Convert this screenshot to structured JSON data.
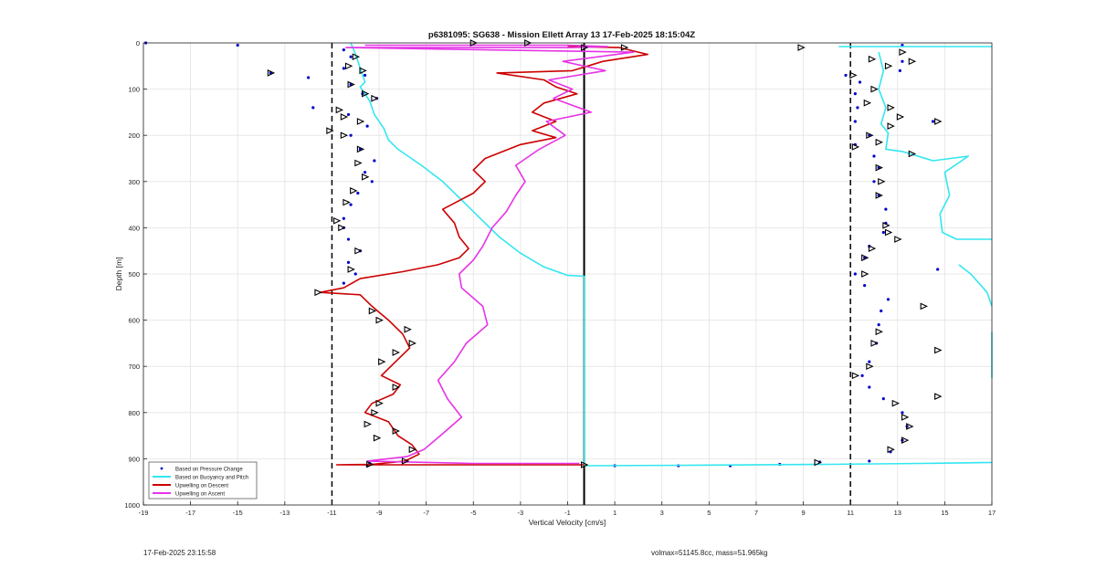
{
  "chart_data": {
    "type": "line",
    "title": "p6381095: SG638 - Mission Ellett Array 13 17-Feb-2025 18:15:04Z",
    "xlabel": "Vertical Velocity [cm/s]",
    "ylabel": "Depth [m]",
    "xlim": [
      -19,
      17
    ],
    "ylim": [
      0,
      1000
    ],
    "y_reversed": true,
    "x_ticks": [
      -19,
      -17,
      -15,
      -13,
      -11,
      -9,
      -7,
      -5,
      -3,
      -1,
      1,
      3,
      5,
      7,
      9,
      11,
      13,
      15,
      17
    ],
    "y_ticks": [
      0,
      100,
      200,
      300,
      400,
      500,
      600,
      700,
      800,
      900,
      1000
    ],
    "grid": true,
    "legend_position": "bottom-left",
    "reference_lines": [
      {
        "type": "vertical",
        "x": -11,
        "style": "dashed",
        "color": "#000000"
      },
      {
        "type": "vertical",
        "x": 11,
        "style": "dashed",
        "color": "#000000"
      },
      {
        "type": "vertical",
        "x": -0.3,
        "style": "solid",
        "color": "#000000"
      }
    ],
    "series": [
      {
        "name": "Based on Pressure Change",
        "kind": "scatter",
        "color": "#0000cc",
        "points": [
          [
            -18.9,
            0
          ],
          [
            -15,
            5
          ],
          [
            -10.5,
            15
          ],
          [
            -10.2,
            30
          ],
          [
            -10.5,
            55
          ],
          [
            -9.6,
            70
          ],
          [
            -13.6,
            65
          ],
          [
            -12,
            75
          ],
          [
            -10.2,
            90
          ],
          [
            -9.7,
            110
          ],
          [
            -9.1,
            120
          ],
          [
            -11.8,
            140
          ],
          [
            -10.3,
            155
          ],
          [
            -9.5,
            180
          ],
          [
            -10.2,
            200
          ],
          [
            -9.8,
            230
          ],
          [
            -9.2,
            255
          ],
          [
            -9.6,
            280
          ],
          [
            -9.3,
            300
          ],
          [
            -9.9,
            325
          ],
          [
            -10.2,
            350
          ],
          [
            -10.5,
            380
          ],
          [
            -10.5,
            400
          ],
          [
            -10.3,
            425
          ],
          [
            -9.8,
            450
          ],
          [
            -10.3,
            475
          ],
          [
            -10,
            500
          ],
          [
            -10.5,
            520
          ],
          [
            -9.4,
            910
          ],
          [
            -9.5,
            915
          ],
          [
            1,
            915
          ],
          [
            3.7,
            915
          ],
          [
            5.9,
            915
          ],
          [
            8,
            912
          ],
          [
            9.7,
            907
          ],
          [
            10.8,
            70
          ],
          [
            11.4,
            85
          ],
          [
            11.2,
            110
          ],
          [
            11.3,
            140
          ],
          [
            11.2,
            170
          ],
          [
            11.8,
            200
          ],
          [
            11.2,
            220
          ],
          [
            12,
            245
          ],
          [
            12.2,
            270
          ],
          [
            12,
            300
          ],
          [
            12.2,
            330
          ],
          [
            12.5,
            360
          ],
          [
            12.5,
            390
          ],
          [
            12.4,
            410
          ],
          [
            11.8,
            440
          ],
          [
            11.6,
            465
          ],
          [
            11.2,
            500
          ],
          [
            11.6,
            525
          ],
          [
            12.6,
            555
          ],
          [
            12.3,
            580
          ],
          [
            12.2,
            610
          ],
          [
            12.1,
            650
          ],
          [
            11.8,
            690
          ],
          [
            11.5,
            720
          ],
          [
            11.8,
            745
          ],
          [
            12.4,
            770
          ],
          [
            13.2,
            800
          ],
          [
            13.4,
            830
          ],
          [
            13.2,
            860
          ],
          [
            12.7,
            885
          ],
          [
            11.8,
            905
          ],
          [
            13.2,
            5
          ],
          [
            13.2,
            40
          ],
          [
            13.1,
            60
          ],
          [
            14.5,
            170
          ],
          [
            14.7,
            490
          ]
        ]
      },
      {
        "name": "Based on Buoyancy and Pitch",
        "kind": "line",
        "color": "#33e6f0",
        "segments": [
          [
            [
              -10.2,
              0
            ],
            [
              -10,
              25
            ],
            [
              -9.8,
              55
            ],
            [
              -9.6,
              85
            ],
            [
              -9.8,
              95
            ],
            [
              -9.4,
              125
            ],
            [
              -9.2,
              155
            ],
            [
              -8.8,
              185
            ],
            [
              -8.6,
              210
            ],
            [
              -8.2,
              230
            ],
            [
              -7.2,
              265
            ],
            [
              -6.3,
              300
            ],
            [
              -5.5,
              340
            ],
            [
              -4.7,
              380
            ],
            [
              -3.9,
              420
            ],
            [
              -3,
              455
            ],
            [
              -2,
              485
            ],
            [
              -1,
              503
            ],
            [
              -0.3,
              505
            ],
            [
              -0.3,
              650
            ],
            [
              -0.3,
              800
            ],
            [
              -0.3,
              915
            ]
          ],
          [
            [
              -0.3,
              915
            ],
            [
              4,
              914
            ],
            [
              10,
              912
            ],
            [
              14,
              910
            ],
            [
              17,
              908
            ]
          ],
          [
            [
              10.5,
              8
            ],
            [
              17,
              8
            ]
          ],
          [
            [
              12.2,
              20
            ],
            [
              12.4,
              60
            ],
            [
              12.2,
              100
            ],
            [
              12.5,
              140
            ],
            [
              12.3,
              175
            ],
            [
              12.6,
              195
            ],
            [
              12.5,
              230
            ],
            [
              13.2,
              235
            ],
            [
              14.5,
              255
            ],
            [
              16,
              245
            ],
            [
              15,
              280
            ],
            [
              15.2,
              330
            ],
            [
              14.8,
              370
            ],
            [
              14.9,
              410
            ],
            [
              15.5,
              425
            ],
            [
              17,
              425
            ]
          ],
          [
            [
              15.6,
              480
            ],
            [
              16.1,
              500
            ],
            [
              16.8,
              540
            ],
            [
              17,
              570
            ]
          ],
          [
            [
              17,
              625
            ],
            [
              17,
              645
            ],
            [
              17,
              725
            ]
          ]
        ]
      },
      {
        "name": "Upwelling on Descent",
        "kind": "line",
        "color": "#cc0000",
        "points": [
          [
            -1,
            8
          ],
          [
            1.2,
            10
          ],
          [
            2.4,
            25
          ],
          [
            0.5,
            40
          ],
          [
            -0.8,
            60
          ],
          [
            -4,
            65
          ],
          [
            -2,
            80
          ],
          [
            -1.5,
            95
          ],
          [
            -0.6,
            110
          ],
          [
            -2,
            130
          ],
          [
            -2.5,
            150
          ],
          [
            -1.5,
            170
          ],
          [
            -2.5,
            190
          ],
          [
            -1.5,
            205
          ],
          [
            -3,
            220
          ],
          [
            -4.5,
            250
          ],
          [
            -5,
            275
          ],
          [
            -4.5,
            300
          ],
          [
            -5,
            325
          ],
          [
            -6.3,
            360
          ],
          [
            -5.8,
            390
          ],
          [
            -5.6,
            420
          ],
          [
            -5.2,
            445
          ],
          [
            -5.6,
            465
          ],
          [
            -6.5,
            480
          ],
          [
            -8,
            495
          ],
          [
            -9.8,
            510
          ],
          [
            -10.5,
            530
          ],
          [
            -11.5,
            540
          ],
          [
            -9.8,
            545
          ],
          [
            -9.3,
            570
          ],
          [
            -8.6,
            600
          ],
          [
            -8,
            630
          ],
          [
            -7.7,
            660
          ],
          [
            -8.3,
            690
          ],
          [
            -8.9,
            720
          ],
          [
            -8.1,
            740
          ],
          [
            -8.4,
            760
          ],
          [
            -9.3,
            780
          ],
          [
            -9.6,
            800
          ],
          [
            -8.6,
            820
          ],
          [
            -8.2,
            850
          ],
          [
            -7.6,
            870
          ],
          [
            -7.3,
            890
          ],
          [
            -7.9,
            905
          ],
          [
            -9.3,
            912
          ],
          [
            -10.8,
            913
          ],
          [
            -0.3,
            913
          ]
        ]
      },
      {
        "name": "Upwelling on Ascent",
        "kind": "line",
        "color": "#e633e6",
        "points": [
          [
            -9.6,
            5
          ],
          [
            -1,
            5
          ],
          [
            0.7,
            8
          ],
          [
            -0.8,
            10
          ],
          [
            -10.4,
            10
          ],
          [
            1.8,
            20
          ],
          [
            -1.2,
            40
          ],
          [
            0.6,
            60
          ],
          [
            -1.8,
            80
          ],
          [
            -0.8,
            100
          ],
          [
            -1.6,
            120
          ],
          [
            0,
            150
          ],
          [
            -1.9,
            170
          ],
          [
            -1.1,
            200
          ],
          [
            -2.2,
            230
          ],
          [
            -3.2,
            265
          ],
          [
            -2.8,
            300
          ],
          [
            -3.2,
            330
          ],
          [
            -3.6,
            365
          ],
          [
            -4.2,
            400
          ],
          [
            -4.6,
            440
          ],
          [
            -5,
            470
          ],
          [
            -5.6,
            500
          ],
          [
            -5.5,
            530
          ],
          [
            -4.6,
            570
          ],
          [
            -4.4,
            610
          ],
          [
            -5.3,
            650
          ],
          [
            -5.8,
            690
          ],
          [
            -6.5,
            730
          ],
          [
            -6.1,
            770
          ],
          [
            -5.5,
            810
          ],
          [
            -6.4,
            850
          ],
          [
            -7.1,
            880
          ],
          [
            -7.8,
            895
          ],
          [
            -9.5,
            905
          ],
          [
            -5,
            910
          ],
          [
            -0.5,
            910
          ]
        ]
      },
      {
        "name": "",
        "kind": "markers",
        "color": "#000000",
        "points": [
          [
            -10,
            30
          ],
          [
            -10.3,
            50
          ],
          [
            -9.7,
            60
          ],
          [
            -13.6,
            65
          ],
          [
            -10.2,
            90
          ],
          [
            -9.6,
            110
          ],
          [
            -9.2,
            120
          ],
          [
            -10.7,
            145
          ],
          [
            -10.5,
            160
          ],
          [
            -9.8,
            170
          ],
          [
            -11.1,
            190
          ],
          [
            -10.5,
            200
          ],
          [
            -9.8,
            230
          ],
          [
            -9.9,
            260
          ],
          [
            -9.6,
            290
          ],
          [
            -10.1,
            320
          ],
          [
            -10.4,
            345
          ],
          [
            -10.8,
            385
          ],
          [
            -10.6,
            400
          ],
          [
            -9.9,
            450
          ],
          [
            -10.2,
            490
          ],
          [
            -11.6,
            540
          ],
          [
            -9.3,
            580
          ],
          [
            -9,
            600
          ],
          [
            -7.8,
            620
          ],
          [
            -7.6,
            650
          ],
          [
            -8.3,
            670
          ],
          [
            -8.9,
            690
          ],
          [
            -8.3,
            745
          ],
          [
            -9,
            780
          ],
          [
            -9.2,
            800
          ],
          [
            -9.5,
            825
          ],
          [
            -8.3,
            840
          ],
          [
            -9.1,
            855
          ],
          [
            -7.6,
            880
          ],
          [
            -7.9,
            905
          ],
          [
            -9.4,
            912
          ],
          [
            -0.3,
            10
          ],
          [
            -0.3,
            913
          ],
          [
            1.4,
            10
          ],
          [
            8.9,
            10
          ],
          [
            9.6,
            908
          ],
          [
            -5,
            0
          ],
          [
            -2.7,
            0
          ],
          [
            11.9,
            35
          ],
          [
            13.2,
            20
          ],
          [
            13.6,
            40
          ],
          [
            12.6,
            50
          ],
          [
            11.1,
            70
          ],
          [
            12,
            100
          ],
          [
            11.7,
            130
          ],
          [
            12.7,
            140
          ],
          [
            13.1,
            160
          ],
          [
            14.7,
            170
          ],
          [
            12.7,
            180
          ],
          [
            11.8,
            200
          ],
          [
            12.2,
            215
          ],
          [
            11.2,
            225
          ],
          [
            13.6,
            240
          ],
          [
            12.2,
            270
          ],
          [
            12.3,
            300
          ],
          [
            12.2,
            330
          ],
          [
            12.5,
            395
          ],
          [
            12.6,
            410
          ],
          [
            13,
            425
          ],
          [
            11.9,
            445
          ],
          [
            11.6,
            465
          ],
          [
            11.6,
            500
          ],
          [
            14.1,
            570
          ],
          [
            12.2,
            625
          ],
          [
            12,
            650
          ],
          [
            14.7,
            665
          ],
          [
            11.8,
            700
          ],
          [
            11.2,
            720
          ],
          [
            14.7,
            765
          ],
          [
            12.9,
            780
          ],
          [
            13.3,
            810
          ],
          [
            13.5,
            830
          ],
          [
            13.3,
            860
          ],
          [
            12.7,
            880
          ]
        ]
      }
    ],
    "legend": [
      "Based on Pressure Change",
      "Based on Buoyancy and Pitch",
      "Upwelling on Descent",
      "Upwelling on Ascent"
    ]
  },
  "footer": {
    "timestamp": "17-Feb-2025 23:15:58",
    "volmax_mass": "volmax=51145.8cc, mass=51.965kg"
  }
}
